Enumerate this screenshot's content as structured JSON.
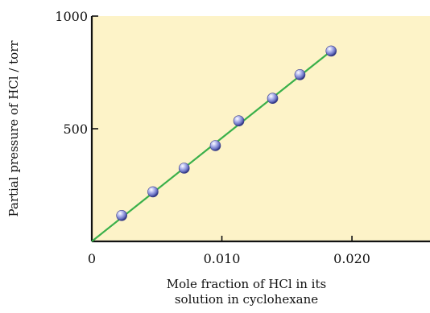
{
  "chart_data": {
    "type": "scatter",
    "title": "",
    "xlabel_lines": [
      "Mole fraction of HCl in its",
      "solution in cyclohexane"
    ],
    "ylabel": "Partial pressure of HCl / torr",
    "xlim": [
      0,
      0.026
    ],
    "ylim": [
      0,
      1000
    ],
    "x_ticks": [
      0,
      0.01,
      0.02
    ],
    "x_tick_labels": [
      "0",
      "0.010",
      "0.020"
    ],
    "y_ticks": [
      500,
      1000
    ],
    "y_tick_labels": [
      "500",
      "1000"
    ],
    "grid": false,
    "plot_background": "#fdf3c8",
    "line_color": "#3ab04a",
    "point_color": "#7f86cf",
    "series": [
      {
        "type": "scatter",
        "x": [
          0.0023,
          0.0047,
          0.0071,
          0.0095,
          0.0113,
          0.0139,
          0.016,
          0.0184
        ],
        "y": [
          115,
          220,
          325,
          425,
          535,
          635,
          740,
          845
        ]
      },
      {
        "type": "line",
        "x": [
          0,
          0.0184
        ],
        "y": [
          0,
          845
        ]
      }
    ]
  }
}
